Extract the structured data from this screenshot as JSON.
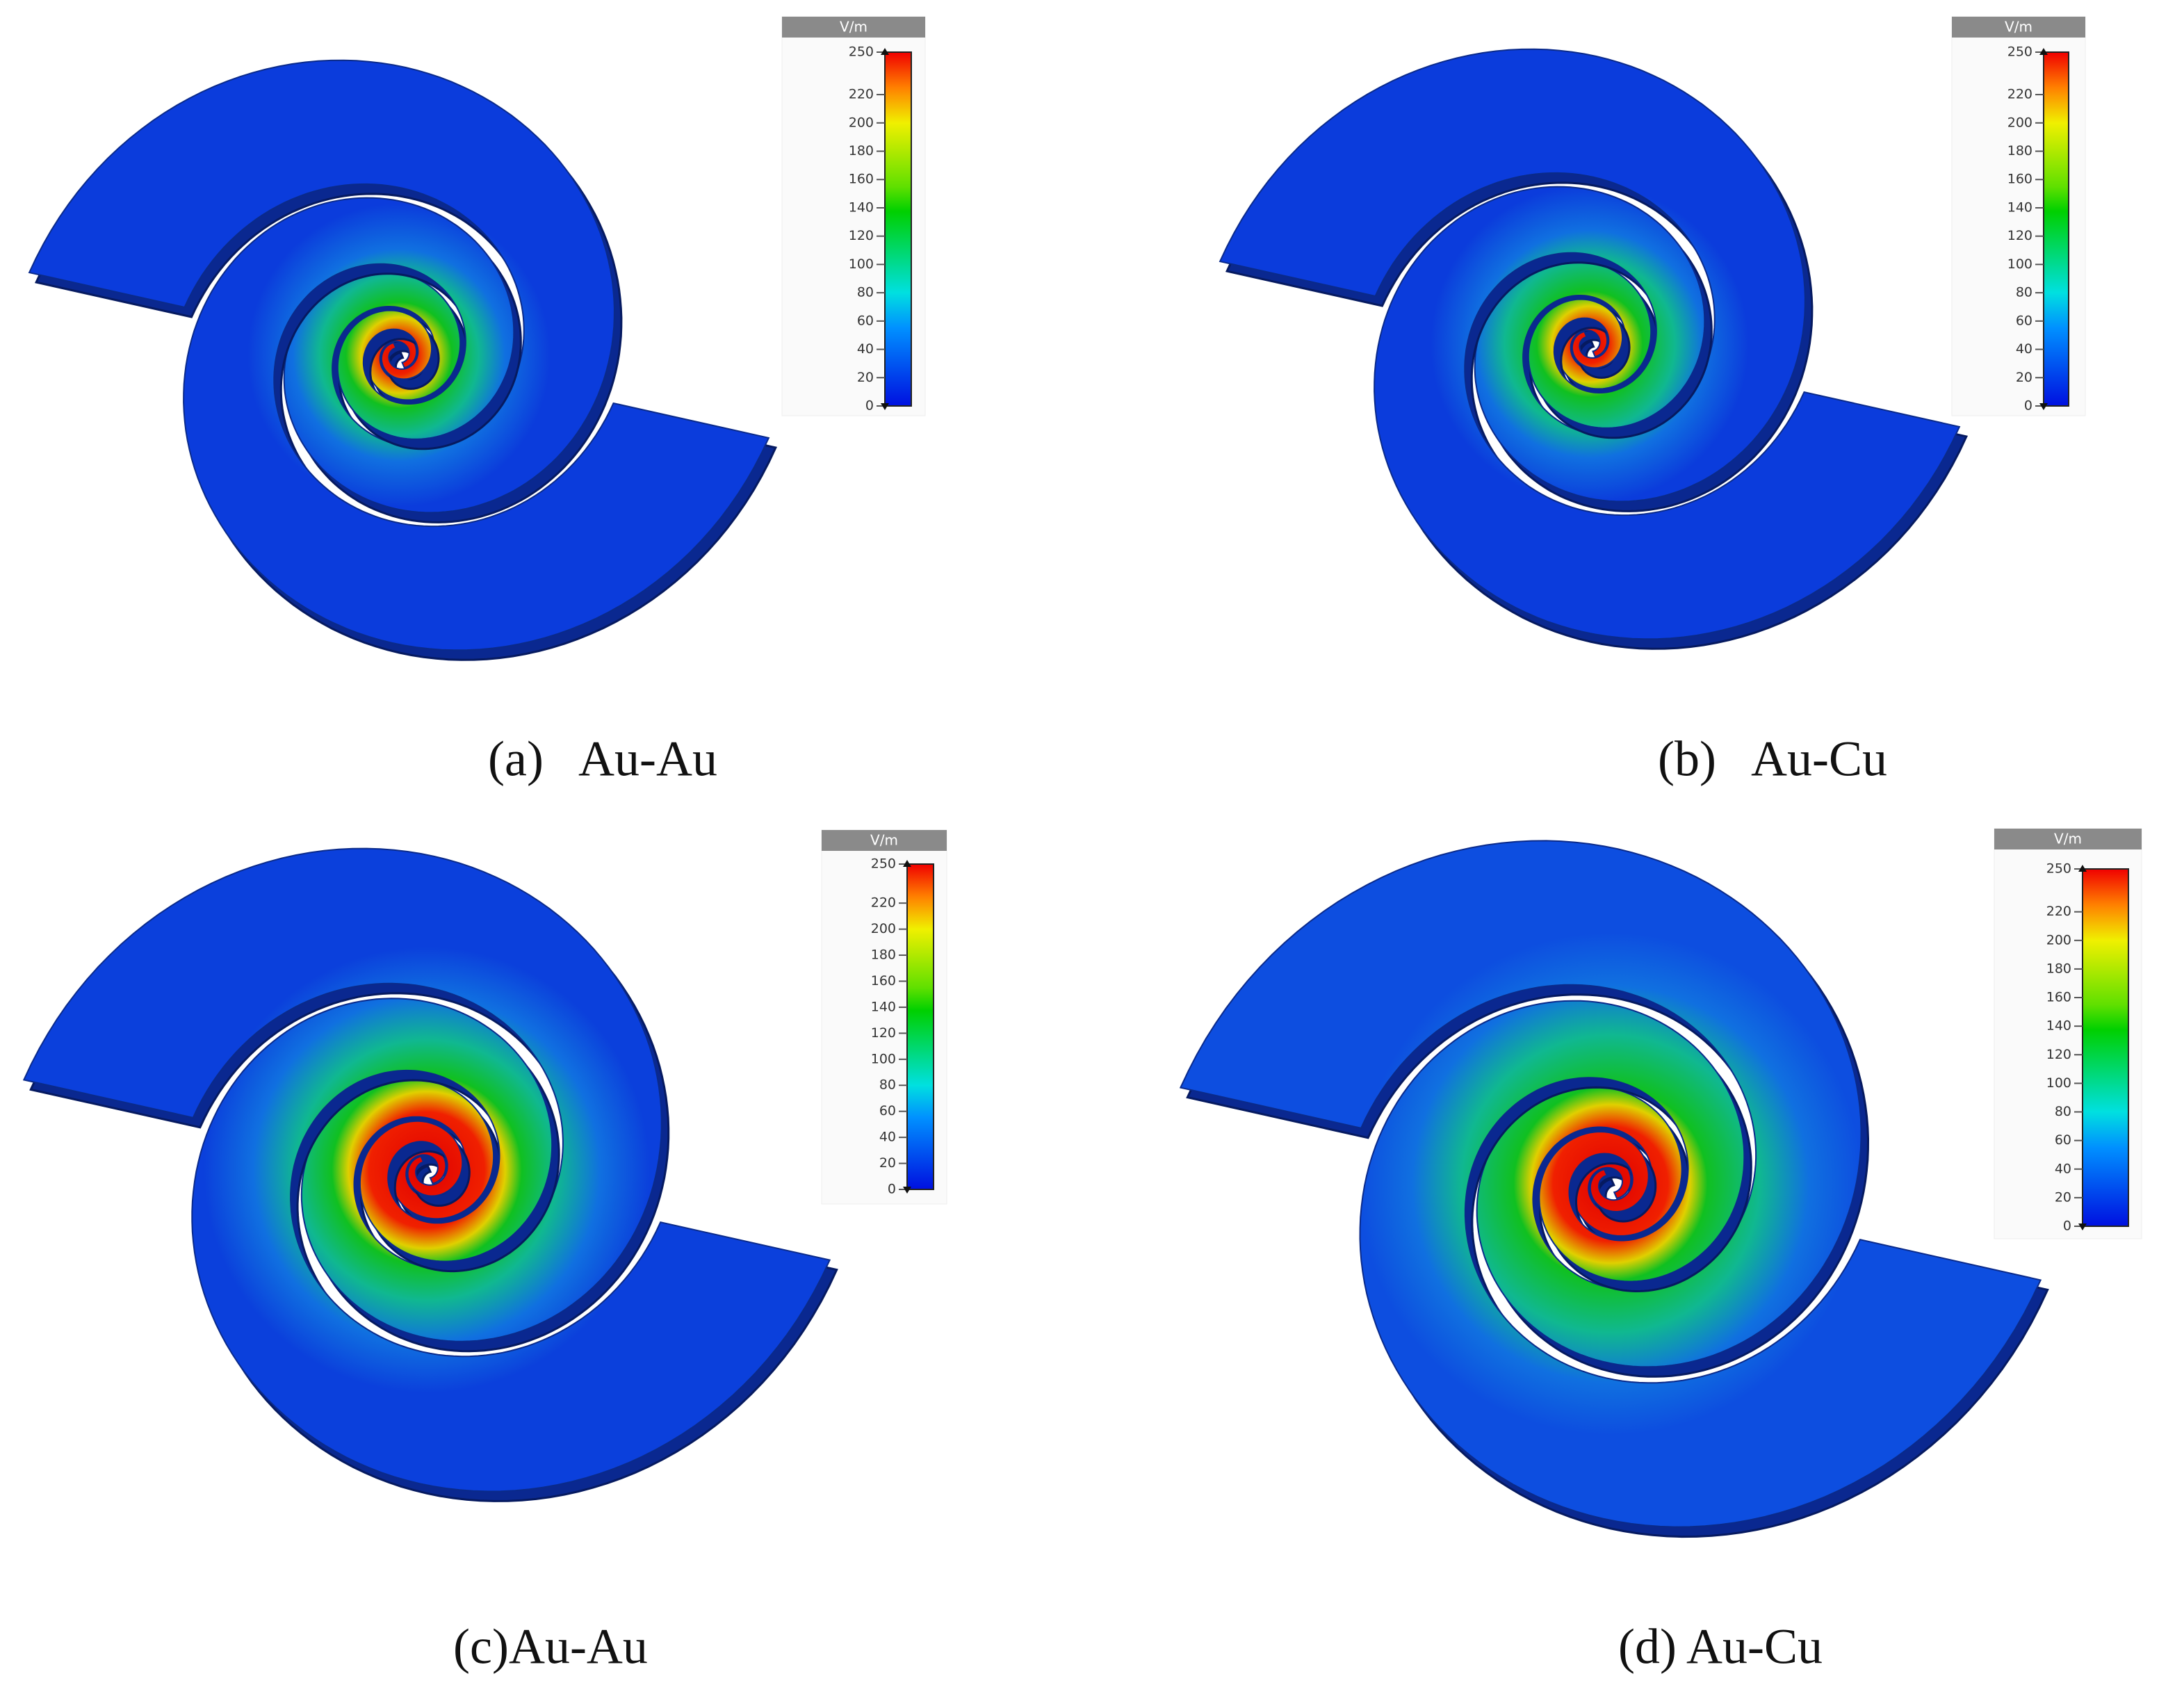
{
  "panels": [
    {
      "caption": "(a)   Au-Au",
      "colorbar": {
        "unit": "V/m",
        "lim": [
          0,
          250
        ],
        "ticks": [
          0,
          20,
          40,
          60,
          80,
          100,
          120,
          140,
          160,
          180,
          200,
          220,
          250
        ]
      }
    },
    {
      "caption": "(b)   Au-Cu",
      "colorbar": {
        "unit": "V/m",
        "lim": [
          0,
          250
        ],
        "ticks": [
          0,
          20,
          40,
          60,
          80,
          100,
          120,
          140,
          160,
          180,
          200,
          220,
          250
        ]
      }
    },
    {
      "caption": "(c)Au-Au",
      "colorbar": {
        "unit": "V/m",
        "lim": [
          0,
          250
        ],
        "ticks": [
          0,
          20,
          40,
          60,
          80,
          100,
          120,
          140,
          160,
          180,
          200,
          220,
          250
        ]
      }
    },
    {
      "caption": "(d) Au-Cu",
      "colorbar": {
        "unit": "V/m",
        "lim": [
          0,
          250
        ],
        "ticks": [
          0,
          20,
          40,
          60,
          80,
          100,
          120,
          140,
          160,
          180,
          200,
          220,
          250
        ]
      }
    }
  ]
}
